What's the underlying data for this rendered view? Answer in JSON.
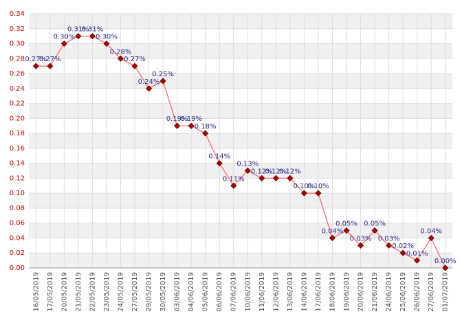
{
  "chart_data": {
    "type": "line",
    "categories": [
      "16/05/2019",
      "17/05/2019",
      "20/05/2019",
      "21/05/2019",
      "22/05/2019",
      "23/05/2019",
      "24/05/2019",
      "27/05/2019",
      "29/05/2019",
      "30/05/2019",
      "03/06/2019",
      "04/06/2019",
      "05/06/2019",
      "06/06/2019",
      "07/06/2019",
      "10/06/2019",
      "11/06/2019",
      "12/06/2019",
      "13/06/2019",
      "14/06/2019",
      "17/06/2019",
      "18/06/2019",
      "19/06/2019",
      "20/06/2019",
      "21/06/2019",
      "24/06/2019",
      "25/06/2019",
      "26/06/2019",
      "27/06/2019",
      "01/07/2019"
    ],
    "values": [
      0.27,
      0.27,
      0.3,
      0.31,
      0.31,
      0.3,
      0.28,
      0.27,
      0.24,
      0.25,
      0.19,
      0.19,
      0.18,
      0.14,
      0.11,
      0.13,
      0.12,
      0.12,
      0.12,
      0.1,
      0.1,
      0.04,
      0.05,
      0.03,
      0.05,
      0.03,
      0.02,
      0.01,
      0.04,
      0.0
    ],
    "value_labels": [
      "0.27%",
      "0.27%",
      "0.30%",
      "0.31%",
      "0.31%",
      "0.30%",
      "0.28%",
      "0.27%",
      "0.24%",
      "0.25%",
      "0.19%",
      "0.19%",
      "0.18%",
      "0.14%",
      "0.11%",
      "0.13%",
      "0.12%",
      "0.12%",
      "0.12%",
      "0.10%",
      "0.10%",
      "0.04%",
      "0.05%",
      "0.03%",
      "0.05%",
      "0.03%",
      "0.02%",
      "0.01%",
      "0.04%",
      "0.00%"
    ],
    "color": "#ff6b6b",
    "marker_color": "#b00000",
    "ylim": [
      0,
      0.34
    ],
    "yticks": [
      {
        "value": 0,
        "label": "0.00"
      },
      {
        "value": 0.02,
        "label": "0.02"
      },
      {
        "value": 0.04,
        "label": "0.04"
      },
      {
        "value": 0.06,
        "label": "0.06"
      },
      {
        "value": 0.08,
        "label": "0.08"
      },
      {
        "value": 0.1,
        "label": "0.10"
      },
      {
        "value": 0.12,
        "label": "0.12"
      },
      {
        "value": 0.14,
        "label": "0.14"
      },
      {
        "value": 0.16,
        "label": "0.16"
      },
      {
        "value": 0.18,
        "label": "0.18"
      },
      {
        "value": 0.2,
        "label": "0.20"
      },
      {
        "value": 0.22,
        "label": "0.22"
      },
      {
        "value": 0.24,
        "label": "0.24"
      },
      {
        "value": 0.26,
        "label": "0.26"
      },
      {
        "value": 0.28,
        "label": "0.28"
      },
      {
        "value": 0.3,
        "label": "0.30"
      },
      {
        "value": 0.32,
        "label": "0.32"
      },
      {
        "value": 0.34,
        "label": "0.34"
      }
    ],
    "grid": true
  }
}
